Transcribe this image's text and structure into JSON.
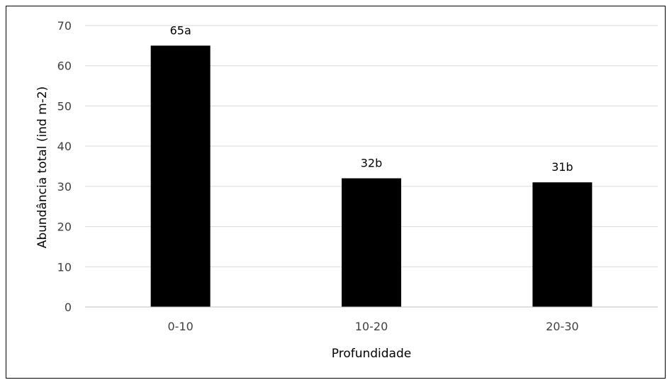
{
  "chart_data": {
    "type": "bar",
    "categories": [
      "0-10",
      "10-20",
      "20-30"
    ],
    "values": [
      65,
      32,
      31
    ],
    "data_labels": [
      "65a",
      "32b",
      "31b"
    ],
    "title": "",
    "xlabel": "Profundidade",
    "ylabel": "Abundância total (ind m-2)",
    "ylim": [
      0,
      70
    ],
    "yticks": [
      "0",
      "10",
      "20",
      "30",
      "40",
      "50",
      "60",
      "70"
    ],
    "grid": true,
    "legend": "none",
    "colors": {
      "bar": "#000000",
      "grid": "#d9d9d9",
      "axis": "#bfbfbf"
    }
  }
}
